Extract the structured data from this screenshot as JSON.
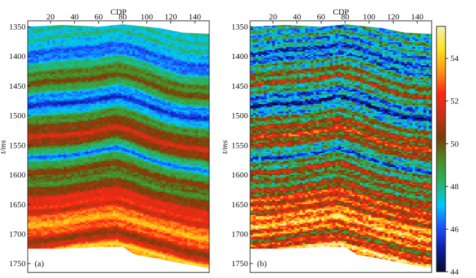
{
  "chart_data": [
    {
      "type": "heatmap",
      "panel_label": "(a)",
      "xlabel": "CDP",
      "ylabel": "t/ms",
      "xticks": [
        20,
        40,
        60,
        80,
        100,
        120,
        140
      ],
      "yticks": [
        1350,
        1400,
        1450,
        1500,
        1550,
        1600,
        1650,
        1700,
        1750
      ],
      "xlim": [
        1,
        152
      ],
      "ylim": [
        1340,
        1765
      ],
      "yaxis_inverted": true,
      "data_coverage": {
        "x": [
          1,
          30,
          60,
          80,
          90,
          110,
          130,
          152
        ],
        "top": [
          1350,
          1347,
          1350,
          1346,
          1348,
          1352,
          1360,
          1362
        ],
        "bottom": [
          1725,
          1725,
          1722,
          1722,
          1735,
          1742,
          1750,
          1758
        ]
      },
      "grid": false
    },
    {
      "type": "heatmap",
      "panel_label": "(b)",
      "xlabel": "CDP",
      "ylabel": "t/ms",
      "xticks": [
        20,
        40,
        60,
        80,
        100,
        120,
        140
      ],
      "yticks": [
        1350,
        1400,
        1450,
        1500,
        1550,
        1600,
        1650,
        1700,
        1750
      ],
      "xlim": [
        1,
        152
      ],
      "ylim": [
        1340,
        1765
      ],
      "yaxis_inverted": true,
      "data_coverage": {
        "x": [
          1,
          30,
          60,
          80,
          90,
          110,
          130,
          152
        ],
        "top": [
          1350,
          1347,
          1350,
          1346,
          1348,
          1352,
          1360,
          1362
        ],
        "bottom": [
          1725,
          1725,
          1722,
          1722,
          1735,
          1742,
          1750,
          1758
        ]
      },
      "grid": false
    }
  ],
  "colorbar": {
    "min": 44,
    "max": 55.5,
    "ticks": [
      44,
      46,
      48,
      50,
      52,
      54
    ],
    "colormap": [
      "#0a0a2a",
      "#0a1ea0",
      "#1e50ff",
      "#00c8ff",
      "#28b464",
      "#4b8c23",
      "#783c0a",
      "#c83214",
      "#ff2814",
      "#ff9614",
      "#ffe11e",
      "#f5f0b4"
    ]
  },
  "section_profile": {
    "layer_times": [
      1368,
      1393,
      1420,
      1442,
      1458,
      1478,
      1498,
      1512,
      1532,
      1548,
      1563,
      1578,
      1592,
      1605,
      1622,
      1640,
      1655,
      1672,
      1690,
      1706,
      1722
    ],
    "layer_values": [
      47.6,
      46.0,
      49.0,
      50.0,
      47.2,
      45.6,
      48.8,
      50.0,
      51.5,
      49.4,
      46.4,
      49.0,
      50.5,
      49.0,
      50.5,
      52.2,
      51.5,
      53.8,
      52.8,
      50.2,
      54.0
    ],
    "structure_x": [
      1,
      30,
      55,
      75,
      90,
      110,
      130,
      152
    ],
    "structure_shift_ms": [
      8,
      2,
      -4,
      -10,
      -2,
      12,
      24,
      30
    ]
  }
}
